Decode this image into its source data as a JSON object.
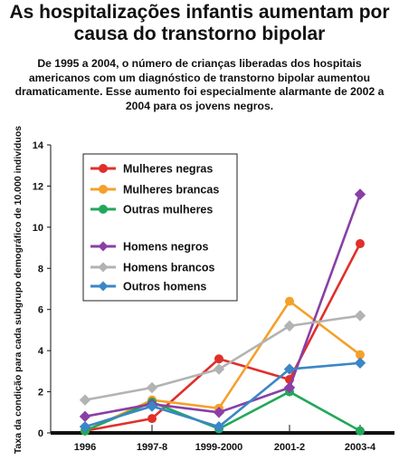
{
  "title": "As hospitalizações infantis aumentam por causa do transtorno bipolar",
  "subtitle": "De 1995 a 2004, o número de crianças liberadas dos hospitais americanos com um diagnóstico de transtorno bipolar aumentou dramaticamente. Esse aumento foi especialmente alarmante de 2002 a 2004 para os jovens negros.",
  "chart_data": {
    "type": "line",
    "title": "As hospitalizações infantis aumentam por causa do transtorno bipolar",
    "xlabel": "",
    "ylabel": "Taxa da condição para cada subgrupo demográfico de 10.000 indivíduos",
    "categories": [
      "1996",
      "1997-8",
      "1999-2000",
      "2001-2",
      "2003-4"
    ],
    "ylim": [
      0,
      14
    ],
    "yticks": [
      0,
      2,
      4,
      6,
      8,
      10,
      12,
      14
    ],
    "legend_position": "top-left",
    "grid": false,
    "series": [
      {
        "name": "Mulheres negras",
        "color": "#e0302b",
        "marker": "circle",
        "values": [
          0.1,
          0.7,
          3.6,
          2.6,
          9.2
        ]
      },
      {
        "name": "Mulheres brancas",
        "color": "#f5a02a",
        "marker": "circle",
        "values": [
          0.1,
          1.6,
          1.2,
          6.4,
          3.8
        ]
      },
      {
        "name": "Outras mulheres",
        "color": "#22a85a",
        "marker": "circle",
        "values": [
          0.1,
          1.5,
          0.2,
          2.0,
          0.1
        ]
      },
      {
        "name": "Homens negros",
        "color": "#8a3fa6",
        "marker": "diamond",
        "values": [
          0.8,
          1.4,
          1.0,
          2.2,
          11.6
        ]
      },
      {
        "name": "Homens brancos",
        "color": "#b3b3b3",
        "marker": "diamond",
        "values": [
          1.6,
          2.2,
          3.1,
          5.2,
          5.7
        ]
      },
      {
        "name": "Outros homens",
        "color": "#3b86c6",
        "marker": "diamond",
        "values": [
          0.3,
          1.3,
          0.3,
          3.1,
          3.4
        ]
      }
    ]
  }
}
